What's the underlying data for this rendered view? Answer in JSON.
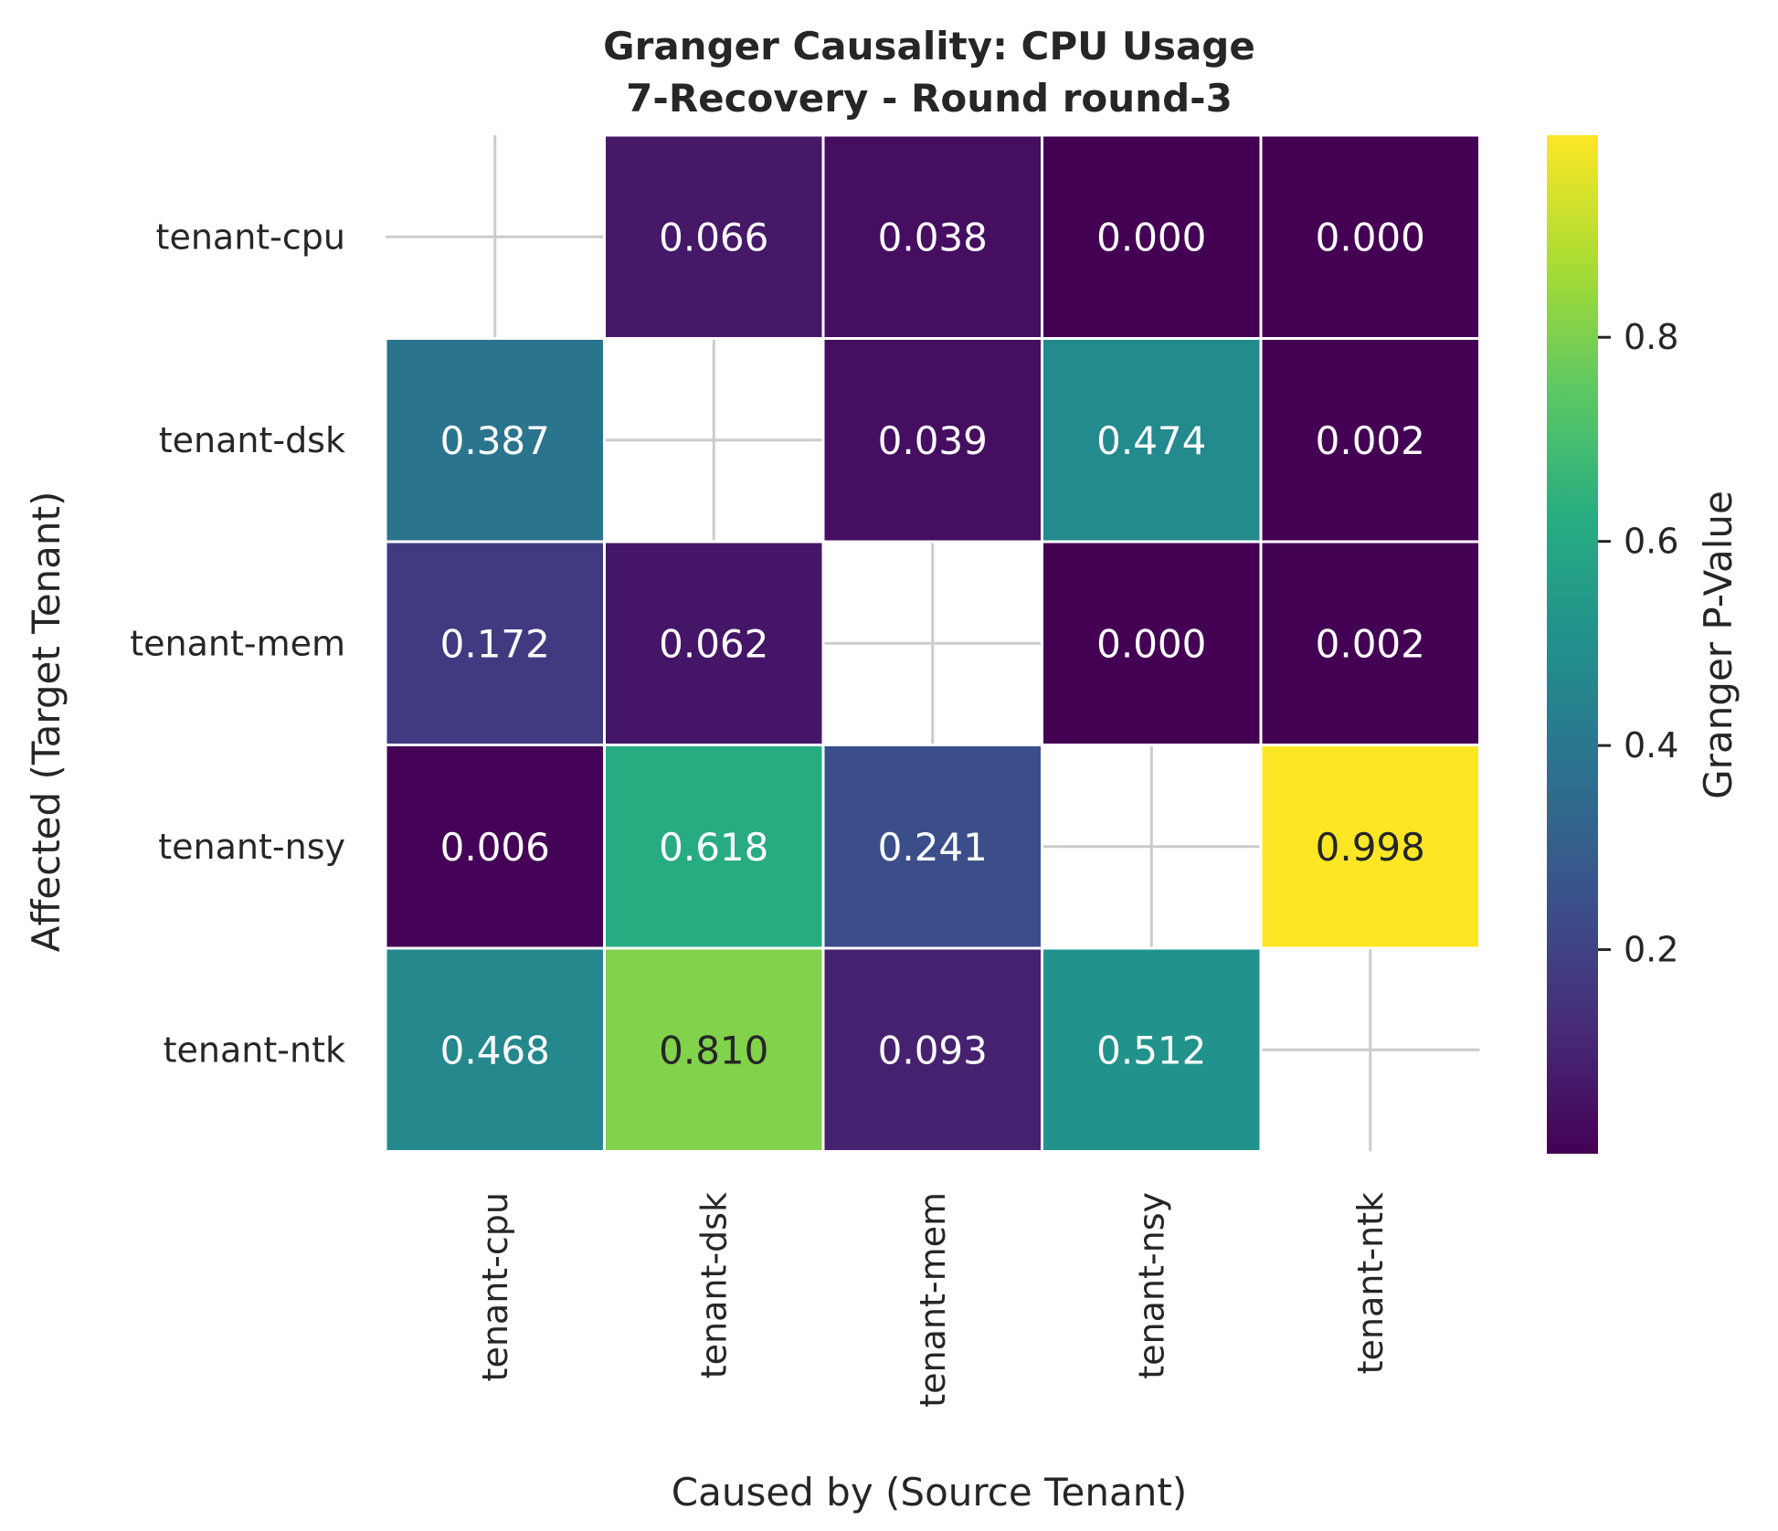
{
  "chart_data": {
    "type": "heatmap",
    "title": [
      "Granger Causality: CPU Usage",
      "7-Recovery - Round round-3"
    ],
    "xlabel": "Caused by (Source Tenant)",
    "ylabel": "Affected (Target Tenant)",
    "x_categories": [
      "tenant-cpu",
      "tenant-dsk",
      "tenant-mem",
      "tenant-nsy",
      "tenant-ntk"
    ],
    "y_categories": [
      "tenant-cpu",
      "tenant-dsk",
      "tenant-mem",
      "tenant-nsy",
      "tenant-ntk"
    ],
    "values": [
      [
        null,
        0.066,
        0.038,
        0.0,
        0.0
      ],
      [
        0.387,
        null,
        0.039,
        0.474,
        0.002
      ],
      [
        0.172,
        0.062,
        null,
        0.0,
        0.002
      ],
      [
        0.006,
        0.618,
        0.241,
        null,
        0.998
      ],
      [
        0.468,
        0.81,
        0.093,
        0.512,
        null
      ]
    ],
    "value_labels": [
      [
        "",
        "0.066",
        "0.038",
        "0.000",
        "0.000"
      ],
      [
        "0.387",
        "",
        "0.039",
        "0.474",
        "0.002"
      ],
      [
        "0.172",
        "0.062",
        "",
        "0.000",
        "0.002"
      ],
      [
        "0.006",
        "0.618",
        "0.241",
        "",
        "0.998"
      ],
      [
        "0.468",
        "0.810",
        "0.093",
        "0.512",
        ""
      ]
    ],
    "colormap": "viridis",
    "colorbar": {
      "label": "Granger P-Value",
      "range": [
        0.0,
        0.998
      ],
      "ticks": [
        0.2,
        0.4,
        0.6,
        0.8
      ],
      "tick_labels": [
        "0.2",
        "0.4",
        "0.6",
        "0.8"
      ]
    },
    "grid": true,
    "colors": {
      "text_dark": "#262626",
      "text_light": "#ffffff",
      "grid": "#cccccc",
      "cell_border": "#ffffff"
    }
  }
}
